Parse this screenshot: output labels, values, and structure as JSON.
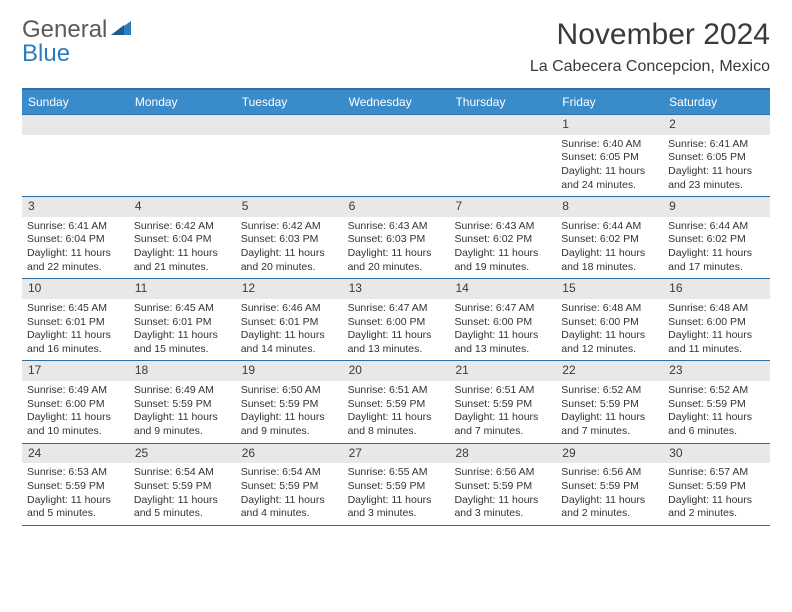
{
  "logo": {
    "text_gray": "General",
    "text_blue": "Blue"
  },
  "title": "November 2024",
  "subtitle": "La Cabecera Concepcion, Mexico",
  "colors": {
    "header_bg": "#3a8bc9",
    "header_border": "#2f6fa3",
    "daynum_bg": "#e8e8e8",
    "text": "#333333",
    "logo_blue": "#2f7bbf",
    "logo_gray": "#5a5a5a"
  },
  "weekdays": [
    "Sunday",
    "Monday",
    "Tuesday",
    "Wednesday",
    "Thursday",
    "Friday",
    "Saturday"
  ],
  "weeks": [
    [
      null,
      null,
      null,
      null,
      null,
      {
        "day": "1",
        "sunrise": "Sunrise: 6:40 AM",
        "sunset": "Sunset: 6:05 PM",
        "daylight": "Daylight: 11 hours and 24 minutes."
      },
      {
        "day": "2",
        "sunrise": "Sunrise: 6:41 AM",
        "sunset": "Sunset: 6:05 PM",
        "daylight": "Daylight: 11 hours and 23 minutes."
      }
    ],
    [
      {
        "day": "3",
        "sunrise": "Sunrise: 6:41 AM",
        "sunset": "Sunset: 6:04 PM",
        "daylight": "Daylight: 11 hours and 22 minutes."
      },
      {
        "day": "4",
        "sunrise": "Sunrise: 6:42 AM",
        "sunset": "Sunset: 6:04 PM",
        "daylight": "Daylight: 11 hours and 21 minutes."
      },
      {
        "day": "5",
        "sunrise": "Sunrise: 6:42 AM",
        "sunset": "Sunset: 6:03 PM",
        "daylight": "Daylight: 11 hours and 20 minutes."
      },
      {
        "day": "6",
        "sunrise": "Sunrise: 6:43 AM",
        "sunset": "Sunset: 6:03 PM",
        "daylight": "Daylight: 11 hours and 20 minutes."
      },
      {
        "day": "7",
        "sunrise": "Sunrise: 6:43 AM",
        "sunset": "Sunset: 6:02 PM",
        "daylight": "Daylight: 11 hours and 19 minutes."
      },
      {
        "day": "8",
        "sunrise": "Sunrise: 6:44 AM",
        "sunset": "Sunset: 6:02 PM",
        "daylight": "Daylight: 11 hours and 18 minutes."
      },
      {
        "day": "9",
        "sunrise": "Sunrise: 6:44 AM",
        "sunset": "Sunset: 6:02 PM",
        "daylight": "Daylight: 11 hours and 17 minutes."
      }
    ],
    [
      {
        "day": "10",
        "sunrise": "Sunrise: 6:45 AM",
        "sunset": "Sunset: 6:01 PM",
        "daylight": "Daylight: 11 hours and 16 minutes."
      },
      {
        "day": "11",
        "sunrise": "Sunrise: 6:45 AM",
        "sunset": "Sunset: 6:01 PM",
        "daylight": "Daylight: 11 hours and 15 minutes."
      },
      {
        "day": "12",
        "sunrise": "Sunrise: 6:46 AM",
        "sunset": "Sunset: 6:01 PM",
        "daylight": "Daylight: 11 hours and 14 minutes."
      },
      {
        "day": "13",
        "sunrise": "Sunrise: 6:47 AM",
        "sunset": "Sunset: 6:00 PM",
        "daylight": "Daylight: 11 hours and 13 minutes."
      },
      {
        "day": "14",
        "sunrise": "Sunrise: 6:47 AM",
        "sunset": "Sunset: 6:00 PM",
        "daylight": "Daylight: 11 hours and 13 minutes."
      },
      {
        "day": "15",
        "sunrise": "Sunrise: 6:48 AM",
        "sunset": "Sunset: 6:00 PM",
        "daylight": "Daylight: 11 hours and 12 minutes."
      },
      {
        "day": "16",
        "sunrise": "Sunrise: 6:48 AM",
        "sunset": "Sunset: 6:00 PM",
        "daylight": "Daylight: 11 hours and 11 minutes."
      }
    ],
    [
      {
        "day": "17",
        "sunrise": "Sunrise: 6:49 AM",
        "sunset": "Sunset: 6:00 PM",
        "daylight": "Daylight: 11 hours and 10 minutes."
      },
      {
        "day": "18",
        "sunrise": "Sunrise: 6:49 AM",
        "sunset": "Sunset: 5:59 PM",
        "daylight": "Daylight: 11 hours and 9 minutes."
      },
      {
        "day": "19",
        "sunrise": "Sunrise: 6:50 AM",
        "sunset": "Sunset: 5:59 PM",
        "daylight": "Daylight: 11 hours and 9 minutes."
      },
      {
        "day": "20",
        "sunrise": "Sunrise: 6:51 AM",
        "sunset": "Sunset: 5:59 PM",
        "daylight": "Daylight: 11 hours and 8 minutes."
      },
      {
        "day": "21",
        "sunrise": "Sunrise: 6:51 AM",
        "sunset": "Sunset: 5:59 PM",
        "daylight": "Daylight: 11 hours and 7 minutes."
      },
      {
        "day": "22",
        "sunrise": "Sunrise: 6:52 AM",
        "sunset": "Sunset: 5:59 PM",
        "daylight": "Daylight: 11 hours and 7 minutes."
      },
      {
        "day": "23",
        "sunrise": "Sunrise: 6:52 AM",
        "sunset": "Sunset: 5:59 PM",
        "daylight": "Daylight: 11 hours and 6 minutes."
      }
    ],
    [
      {
        "day": "24",
        "sunrise": "Sunrise: 6:53 AM",
        "sunset": "Sunset: 5:59 PM",
        "daylight": "Daylight: 11 hours and 5 minutes."
      },
      {
        "day": "25",
        "sunrise": "Sunrise: 6:54 AM",
        "sunset": "Sunset: 5:59 PM",
        "daylight": "Daylight: 11 hours and 5 minutes."
      },
      {
        "day": "26",
        "sunrise": "Sunrise: 6:54 AM",
        "sunset": "Sunset: 5:59 PM",
        "daylight": "Daylight: 11 hours and 4 minutes."
      },
      {
        "day": "27",
        "sunrise": "Sunrise: 6:55 AM",
        "sunset": "Sunset: 5:59 PM",
        "daylight": "Daylight: 11 hours and 3 minutes."
      },
      {
        "day": "28",
        "sunrise": "Sunrise: 6:56 AM",
        "sunset": "Sunset: 5:59 PM",
        "daylight": "Daylight: 11 hours and 3 minutes."
      },
      {
        "day": "29",
        "sunrise": "Sunrise: 6:56 AM",
        "sunset": "Sunset: 5:59 PM",
        "daylight": "Daylight: 11 hours and 2 minutes."
      },
      {
        "day": "30",
        "sunrise": "Sunrise: 6:57 AM",
        "sunset": "Sunset: 5:59 PM",
        "daylight": "Daylight: 11 hours and 2 minutes."
      }
    ]
  ]
}
